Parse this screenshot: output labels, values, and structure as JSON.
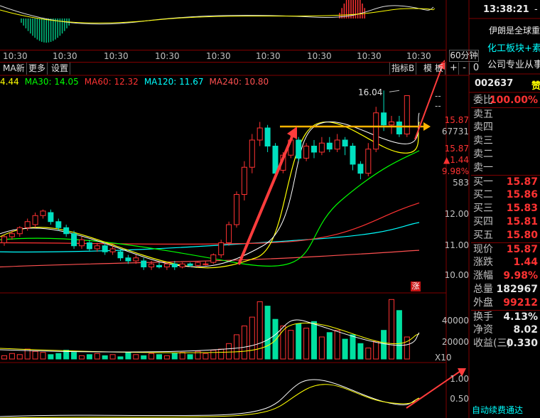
{
  "macd_top": {
    "time_labels": [
      "10:30",
      "10:30",
      "10:30",
      "10:30",
      "10:30",
      "10:30",
      "10:30",
      "10:30",
      "10:30"
    ]
  },
  "toolbar": {
    "ma_label": "MA新",
    "more_label": "更多",
    "settings_label": "设置",
    "indicator_label": "指标B",
    "mode_label": "模 板",
    "period_label": "60分钟",
    "plus_label": "+",
    "minus_label": "-",
    "zero_label": "0"
  },
  "ma_values": {
    "ma_short": "4.44",
    "ma30": "MA30: 14.05",
    "ma60": "MA60: 12.32",
    "ma120": "MA120: 11.67",
    "ma240": "MA240: 10.80",
    "colors": {
      "ma30": "#00ff00",
      "ma60": "#ff3232",
      "ma120": "#00ffff",
      "ma240": "#ff5050",
      "short": "#ffff00"
    }
  },
  "price_axis": {
    "labels": [
      "--",
      "--",
      "15.87",
      "67731",
      "15.87",
      "▲1.44",
      "9.98%",
      "583",
      "12.00",
      "11.00",
      "10.00"
    ],
    "high_annotation": "16.04",
    "limit_up_marker": "涨"
  },
  "volume_axis": {
    "labels": [
      "40000",
      "20000"
    ],
    "unit": "X10"
  },
  "indicator_axis": {
    "labels": [
      "1.00",
      "0.50"
    ]
  },
  "header_right": {
    "time": "13:38:21",
    "dash": "-",
    "news_1": "伊朗是全球重",
    "news_2": "化工板块+素",
    "news_3": "公司专业从事",
    "stock_code": "002637",
    "stock_name_glyph": "赞"
  },
  "order_book": {
    "weibi_label": "委比",
    "weibi_value": "100.00%",
    "asks": [
      {
        "label": "卖五",
        "price": ""
      },
      {
        "label": "卖四",
        "price": ""
      },
      {
        "label": "卖三",
        "price": ""
      },
      {
        "label": "卖二",
        "price": ""
      },
      {
        "label": "卖一",
        "price": ""
      }
    ],
    "bids": [
      {
        "label": "买一",
        "price": "15.87"
      },
      {
        "label": "买二",
        "price": "15.86"
      },
      {
        "label": "买三",
        "price": "15.83"
      },
      {
        "label": "买四",
        "price": "15.81"
      },
      {
        "label": "买五",
        "price": "15.80"
      }
    ]
  },
  "quote": [
    {
      "label": "现价",
      "value": "15.87",
      "color": "red"
    },
    {
      "label": "涨跌",
      "value": "1.44",
      "color": "red"
    },
    {
      "label": "涨幅",
      "value": "9.98%",
      "color": "red"
    },
    {
      "label": "总量",
      "value": "182967",
      "color": "white"
    },
    {
      "label": "外盘",
      "value": "99212",
      "color": "red"
    },
    {
      "label": "换手",
      "value": "4.13%",
      "color": "white"
    },
    {
      "label": "净资",
      "value": "8.02",
      "color": "white"
    },
    {
      "label": "收益(三)",
      "value": "0.330",
      "color": "white"
    }
  ],
  "footer": {
    "renew_label": "自动续费通达"
  }
}
